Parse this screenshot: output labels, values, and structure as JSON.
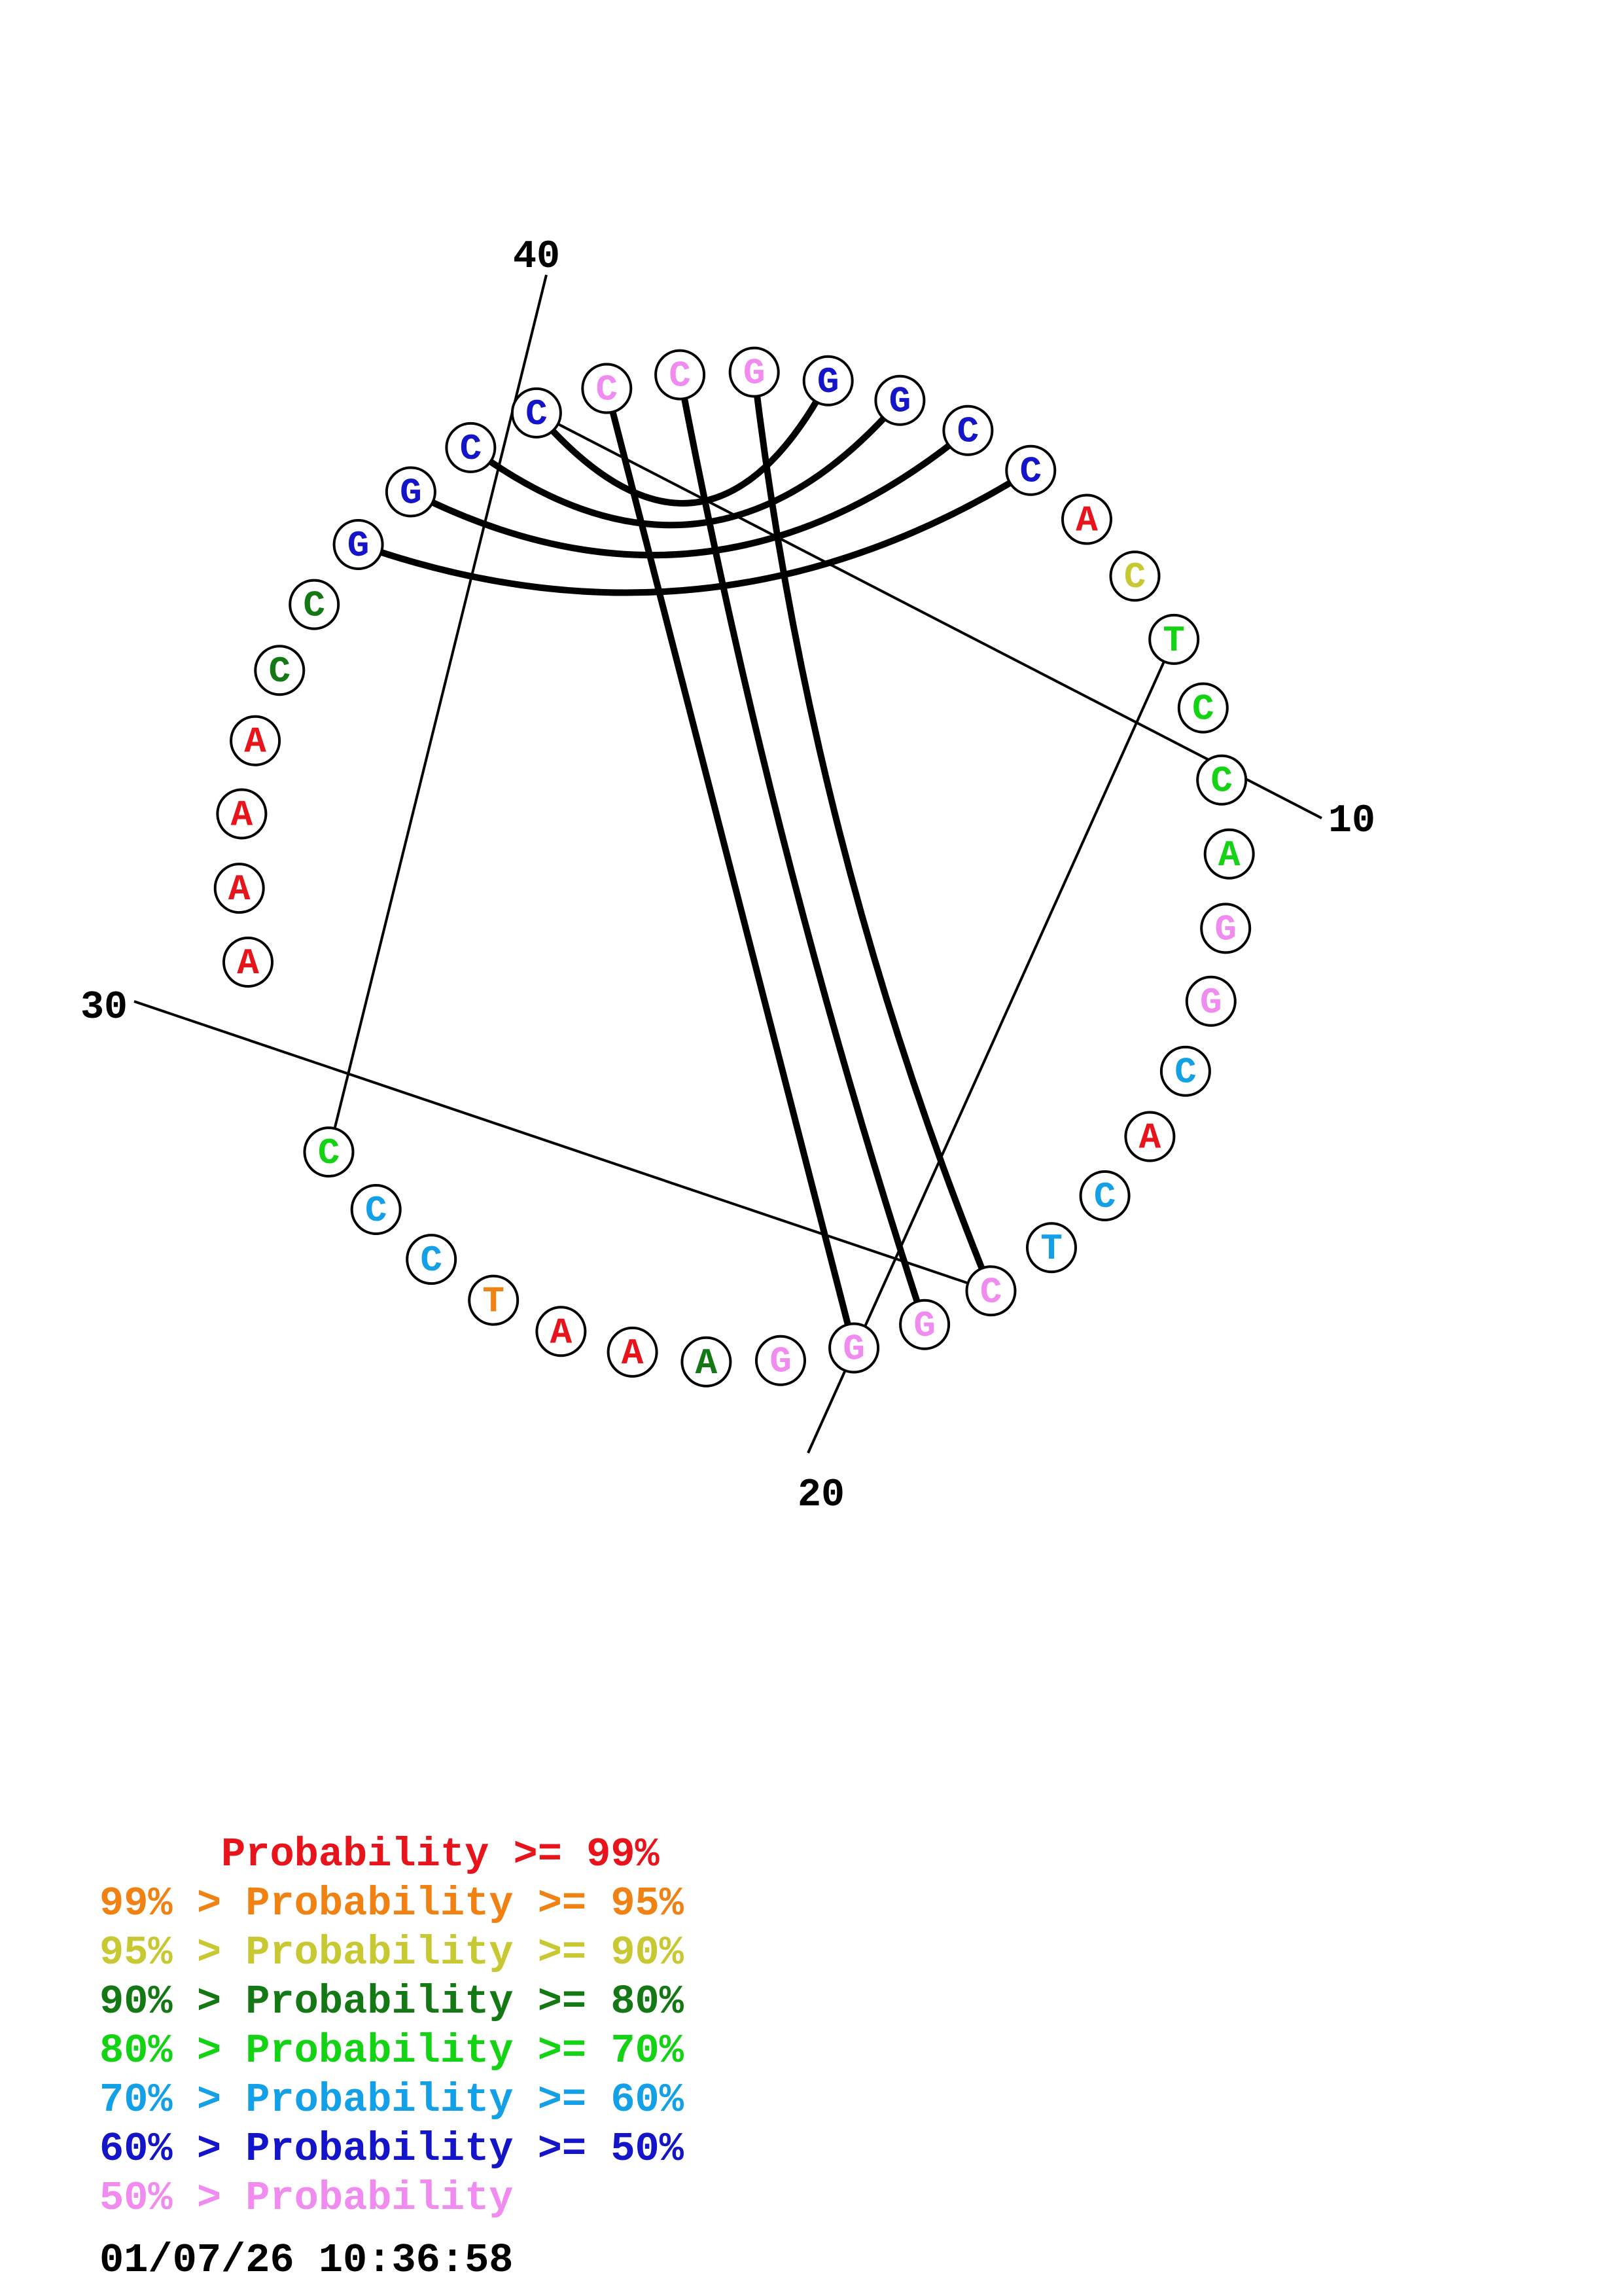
{
  "nucleotides": [
    {
      "index": 1,
      "letter": "A",
      "color": "#e8141c"
    },
    {
      "index": 2,
      "letter": "A",
      "color": "#e8141c"
    },
    {
      "index": 3,
      "letter": "A",
      "color": "#e8141c"
    },
    {
      "index": 4,
      "letter": "A",
      "color": "#e8141c"
    },
    {
      "index": 5,
      "letter": "C",
      "color": "#147814"
    },
    {
      "index": 6,
      "letter": "C",
      "color": "#147814"
    },
    {
      "index": 7,
      "letter": "G",
      "color": "#1414c8"
    },
    {
      "index": 8,
      "letter": "G",
      "color": "#1414c8"
    },
    {
      "index": 9,
      "letter": "C",
      "color": "#1414c8"
    },
    {
      "index": 10,
      "letter": "C",
      "color": "#1414c8"
    },
    {
      "index": 11,
      "letter": "C",
      "color": "#f08cf0"
    },
    {
      "index": 12,
      "letter": "C",
      "color": "#f08cf0"
    },
    {
      "index": 13,
      "letter": "G",
      "color": "#f08cf0"
    },
    {
      "index": 14,
      "letter": "G",
      "color": "#1414c8"
    },
    {
      "index": 15,
      "letter": "G",
      "color": "#1414c8"
    },
    {
      "index": 16,
      "letter": "C",
      "color": "#1414c8"
    },
    {
      "index": 17,
      "letter": "C",
      "color": "#1414c8"
    },
    {
      "index": 18,
      "letter": "A",
      "color": "#e8141c"
    },
    {
      "index": 19,
      "letter": "C",
      "color": "#c8c832"
    },
    {
      "index": 20,
      "letter": "T",
      "color": "#14d214"
    },
    {
      "index": 21,
      "letter": "C",
      "color": "#14d214"
    },
    {
      "index": 22,
      "letter": "C",
      "color": "#14d214"
    },
    {
      "index": 23,
      "letter": "A",
      "color": "#14d214"
    },
    {
      "index": 24,
      "letter": "G",
      "color": "#f08cf0"
    },
    {
      "index": 25,
      "letter": "G",
      "color": "#f08cf0"
    },
    {
      "index": 26,
      "letter": "C",
      "color": "#14a0e6"
    },
    {
      "index": 27,
      "letter": "A",
      "color": "#e8141c"
    },
    {
      "index": 28,
      "letter": "C",
      "color": "#14a0e6"
    },
    {
      "index": 29,
      "letter": "T",
      "color": "#14a0e6"
    },
    {
      "index": 30,
      "letter": "C",
      "color": "#f08cf0"
    },
    {
      "index": 31,
      "letter": "G",
      "color": "#f08cf0"
    },
    {
      "index": 32,
      "letter": "G",
      "color": "#f08cf0"
    },
    {
      "index": 33,
      "letter": "G",
      "color": "#f08cf0"
    },
    {
      "index": 34,
      "letter": "A",
      "color": "#147814"
    },
    {
      "index": 35,
      "letter": "A",
      "color": "#e8141c"
    },
    {
      "index": 36,
      "letter": "A",
      "color": "#e8141c"
    },
    {
      "index": 37,
      "letter": "T",
      "color": "#f08214"
    },
    {
      "index": 38,
      "letter": "C",
      "color": "#14a0e6"
    },
    {
      "index": 39,
      "letter": "C",
      "color": "#14a0e6"
    },
    {
      "index": 40,
      "letter": "C",
      "color": "#14d214"
    }
  ],
  "pairs": [
    [
      7,
      17
    ],
    [
      8,
      16
    ],
    [
      9,
      15
    ],
    [
      10,
      14
    ],
    [
      11,
      32
    ],
    [
      12,
      31
    ],
    [
      13,
      30
    ]
  ],
  "position_labels": [
    {
      "index": 10,
      "text": "10"
    },
    {
      "index": 20,
      "text": "20"
    },
    {
      "index": 30,
      "text": "30"
    },
    {
      "index": 40,
      "text": "40"
    }
  ],
  "legend": [
    {
      "text": "     Probability >= 99%",
      "color": "#e8141c"
    },
    {
      "text": "99% > Probability >= 95%",
      "color": "#f08214"
    },
    {
      "text": "95% > Probability >= 90%",
      "color": "#c8c832"
    },
    {
      "text": "90% > Probability >= 80%",
      "color": "#147814"
    },
    {
      "text": "80% > Probability >= 70%",
      "color": "#14d214"
    },
    {
      "text": "70% > Probability >= 60%",
      "color": "#14a0e6"
    },
    {
      "text": "60% > Probability >= 50%",
      "color": "#1414c8"
    },
    {
      "text": "50% > Probability",
      "color": "#f08cf0"
    }
  ],
  "timestamp": "01/07/26 10:36:58"
}
